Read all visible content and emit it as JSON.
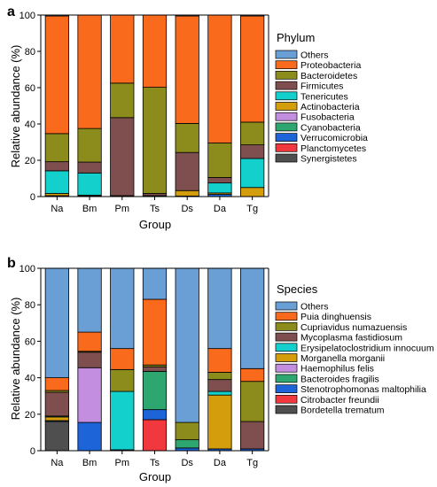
{
  "colors": {
    "Others": "#6a9fd6",
    "Proteobacteria": "#f96a1c",
    "Bacteroidetes": "#8c8c1c",
    "Firmicutes": "#7f4f50",
    "Tenericutes": "#14d0cc",
    "Actinobacteria": "#d39d0c",
    "Fusobacteria": "#c48ee0",
    "Cyanobacteria": "#2ea66f",
    "Verrucomicrobia": "#1c64d8",
    "Planctomycetes": "#f2383f",
    "Synergistetes": "#4f4f4f",
    "Puia dinghuensis": "#f96a1c",
    "Cupriavidus numazuensis": "#8c8c1c",
    "Mycoplasma fastidiosum": "#7f4f50",
    "Erysipelatoclostridium innocuum": "#14d0cc",
    "Morganella morganii": "#d39d0c",
    "Haemophilus felis": "#c48ee0",
    "Bacteroides fragilis": "#2ea66f",
    "Stenotrophomonas maltophilia": "#1c64d8",
    "Citrobacter freundii": "#f2383f",
    "Bordetella trematum": "#4f4f4f"
  },
  "chart_data": [
    {
      "type": "bar",
      "stacked": true,
      "panel": "a",
      "xlabel": "Group",
      "ylabel": "Relative abundance (%)",
      "ylim": [
        0,
        100
      ],
      "yticks": [
        0,
        20,
        40,
        60,
        80,
        100
      ],
      "categories": [
        "Na",
        "Bm",
        "Pm",
        "Ts",
        "Ds",
        "Da",
        "Tg"
      ],
      "legend_title": "Phylum",
      "legend_position": "right",
      "series": [
        {
          "name": "Synergistetes",
          "values": [
            0.3,
            0,
            0,
            0,
            0,
            0,
            0
          ]
        },
        {
          "name": "Planctomycetes",
          "values": [
            0,
            0,
            0,
            0,
            0,
            0,
            0
          ]
        },
        {
          "name": "Verrucomicrobia",
          "values": [
            0.2,
            0.3,
            0,
            0,
            0.3,
            1.2,
            0
          ]
        },
        {
          "name": "Cyanobacteria",
          "values": [
            0,
            0,
            0,
            0,
            0,
            0,
            0
          ]
        },
        {
          "name": "Fusobacteria",
          "values": [
            0,
            0,
            0,
            0,
            0,
            0,
            0
          ]
        },
        {
          "name": "Actinobacteria",
          "values": [
            1.2,
            0.5,
            0.5,
            0.5,
            3,
            0.8,
            5
          ]
        },
        {
          "name": "Tenericutes",
          "values": [
            12.5,
            12.2,
            0,
            0,
            0,
            5.5,
            16
          ]
        },
        {
          "name": "Firmicutes",
          "values": [
            5,
            6,
            43,
            1.2,
            21,
            3,
            7.5
          ]
        },
        {
          "name": "Bacteroidetes",
          "values": [
            15.5,
            18.5,
            19,
            58.5,
            16,
            19,
            12.5
          ]
        },
        {
          "name": "Proteobacteria",
          "values": [
            64.8,
            62.5,
            37.5,
            39.8,
            59.2,
            70.5,
            58.5
          ]
        },
        {
          "name": "Others",
          "values": [
            0.5,
            0,
            0,
            0,
            0.5,
            0,
            0.5
          ]
        }
      ]
    },
    {
      "type": "bar",
      "stacked": true,
      "panel": "b",
      "xlabel": "Group",
      "ylabel": "Relative abundance (%)",
      "ylim": [
        0,
        100
      ],
      "yticks": [
        0,
        20,
        40,
        60,
        80,
        100
      ],
      "categories": [
        "Na",
        "Bm",
        "Pm",
        "Ts",
        "Ds",
        "Da",
        "Tg"
      ],
      "legend_title": "Species",
      "legend_position": "right",
      "series": [
        {
          "name": "Bordetella trematum",
          "values": [
            16,
            0,
            0,
            0,
            0,
            0,
            0
          ]
        },
        {
          "name": "Citrobacter freundii",
          "values": [
            0,
            0,
            0,
            17,
            0,
            0,
            0
          ]
        },
        {
          "name": "Stenotrophomonas maltophilia",
          "values": [
            0.5,
            15.5,
            0.5,
            5.5,
            1.5,
            1,
            1
          ]
        },
        {
          "name": "Bacteroides fragilis",
          "values": [
            0,
            0,
            0,
            21,
            4.5,
            0,
            0
          ]
        },
        {
          "name": "Haemophilus felis",
          "values": [
            0,
            30,
            0,
            0,
            0,
            0,
            0
          ]
        },
        {
          "name": "Morganella morganii",
          "values": [
            2,
            0,
            0,
            0,
            0,
            29.5,
            0
          ]
        },
        {
          "name": "Erysipelatoclostridium innocuum",
          "values": [
            0.5,
            0,
            32,
            0,
            0,
            2,
            0
          ]
        },
        {
          "name": "Mycoplasma fastidiosum",
          "values": [
            13,
            8.5,
            0,
            2.5,
            0,
            6.5,
            15
          ]
        },
        {
          "name": "Cupriavidus numazuensis",
          "values": [
            1,
            0.5,
            12,
            1,
            9.5,
            4,
            22
          ]
        },
        {
          "name": "Puia dinghuensis",
          "values": [
            7,
            10.5,
            11.5,
            36,
            0,
            13,
            7
          ]
        },
        {
          "name": "Others",
          "values": [
            60,
            35,
            44,
            17,
            84.5,
            44,
            55
          ]
        }
      ]
    }
  ]
}
